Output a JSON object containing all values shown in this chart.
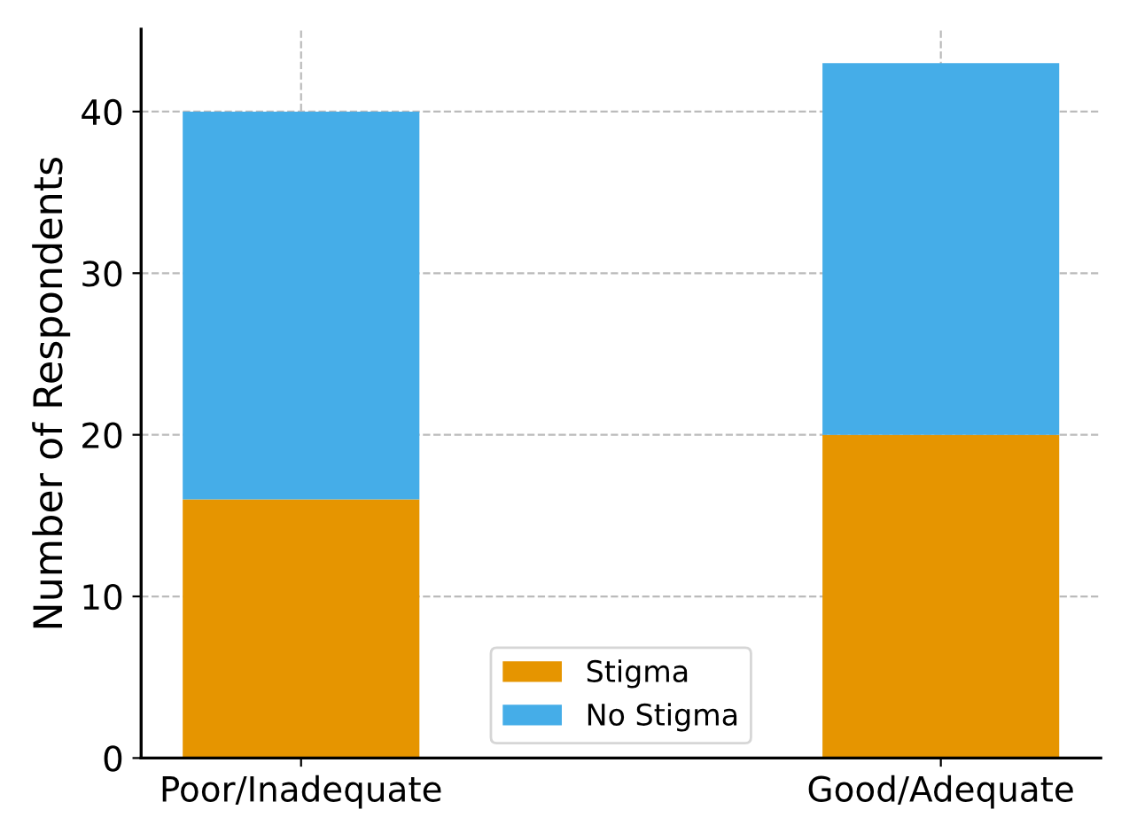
{
  "chart_data": {
    "type": "bar",
    "stacked": true,
    "ylabel": "Number of Respondents",
    "categories": [
      "Poor/Inadequate",
      "Good/Adequate"
    ],
    "series": [
      {
        "name": "Stigma",
        "color": "#e69500",
        "values": [
          16,
          20
        ]
      },
      {
        "name": "No Stigma",
        "color": "#45ade8",
        "values": [
          24,
          23
        ]
      }
    ],
    "ylim": [
      0,
      45.1
    ],
    "yticks": [
      0,
      10,
      20,
      30,
      40
    ],
    "grid": true,
    "legend": "bottom"
  }
}
